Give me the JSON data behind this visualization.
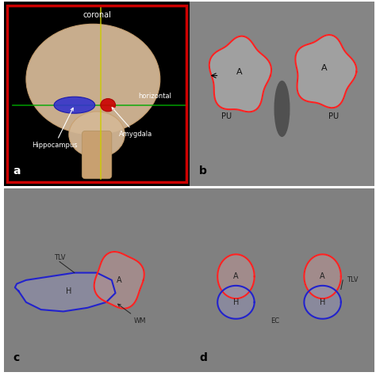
{
  "figure_bg": "#ffffff",
  "panel_labels": [
    "a",
    "b",
    "c",
    "d"
  ],
  "panel_label_color": "#000000",
  "panel_label_fontsize": 10,
  "panel_a": {
    "bg_color": "#000000",
    "border_color": "#cc0000",
    "border_linewidth": 2.5,
    "brain_color": "#d4b896",
    "hippocampus_color": "#3333cc",
    "amygdala_color": "#cc0000",
    "coronal_plane_color": "#cccc00",
    "horizontal_plane_color": "#00aa00",
    "label_hippocampus": "Hippocampus",
    "label_amygdala": "Amygdala",
    "label_coronal": "coronal",
    "label_horizontal": "horizontal",
    "label_color": "#ffffff",
    "label_fontsize": 7
  },
  "panel_b": {
    "bg_color": "#888888",
    "contour_color": "#ff2222",
    "label_A_left": "A",
    "label_A_right": "A",
    "label_PU_left": "PU",
    "label_PU_right": "PU",
    "label_color": "#111111",
    "label_fontsize": 8,
    "panel_letter": "b"
  },
  "panel_c": {
    "bg_color": "#888888",
    "amygdala_contour_color": "#ff2222",
    "hippo_contour_color": "#2222cc",
    "label_A": "A",
    "label_H": "H",
    "label_TLV": "TLV",
    "label_WM": "WM",
    "label_color": "#111111",
    "label_fontsize": 7,
    "panel_letter": "c"
  },
  "panel_d": {
    "bg_color": "#888888",
    "amygdala_contour_color": "#ff2222",
    "hippo_contour_color": "#2222cc",
    "label_A": "A",
    "label_H": "H",
    "label_TLV": "TLV",
    "label_EC": "EC",
    "label_color": "#111111",
    "label_fontsize": 7,
    "panel_letter": "d"
  }
}
